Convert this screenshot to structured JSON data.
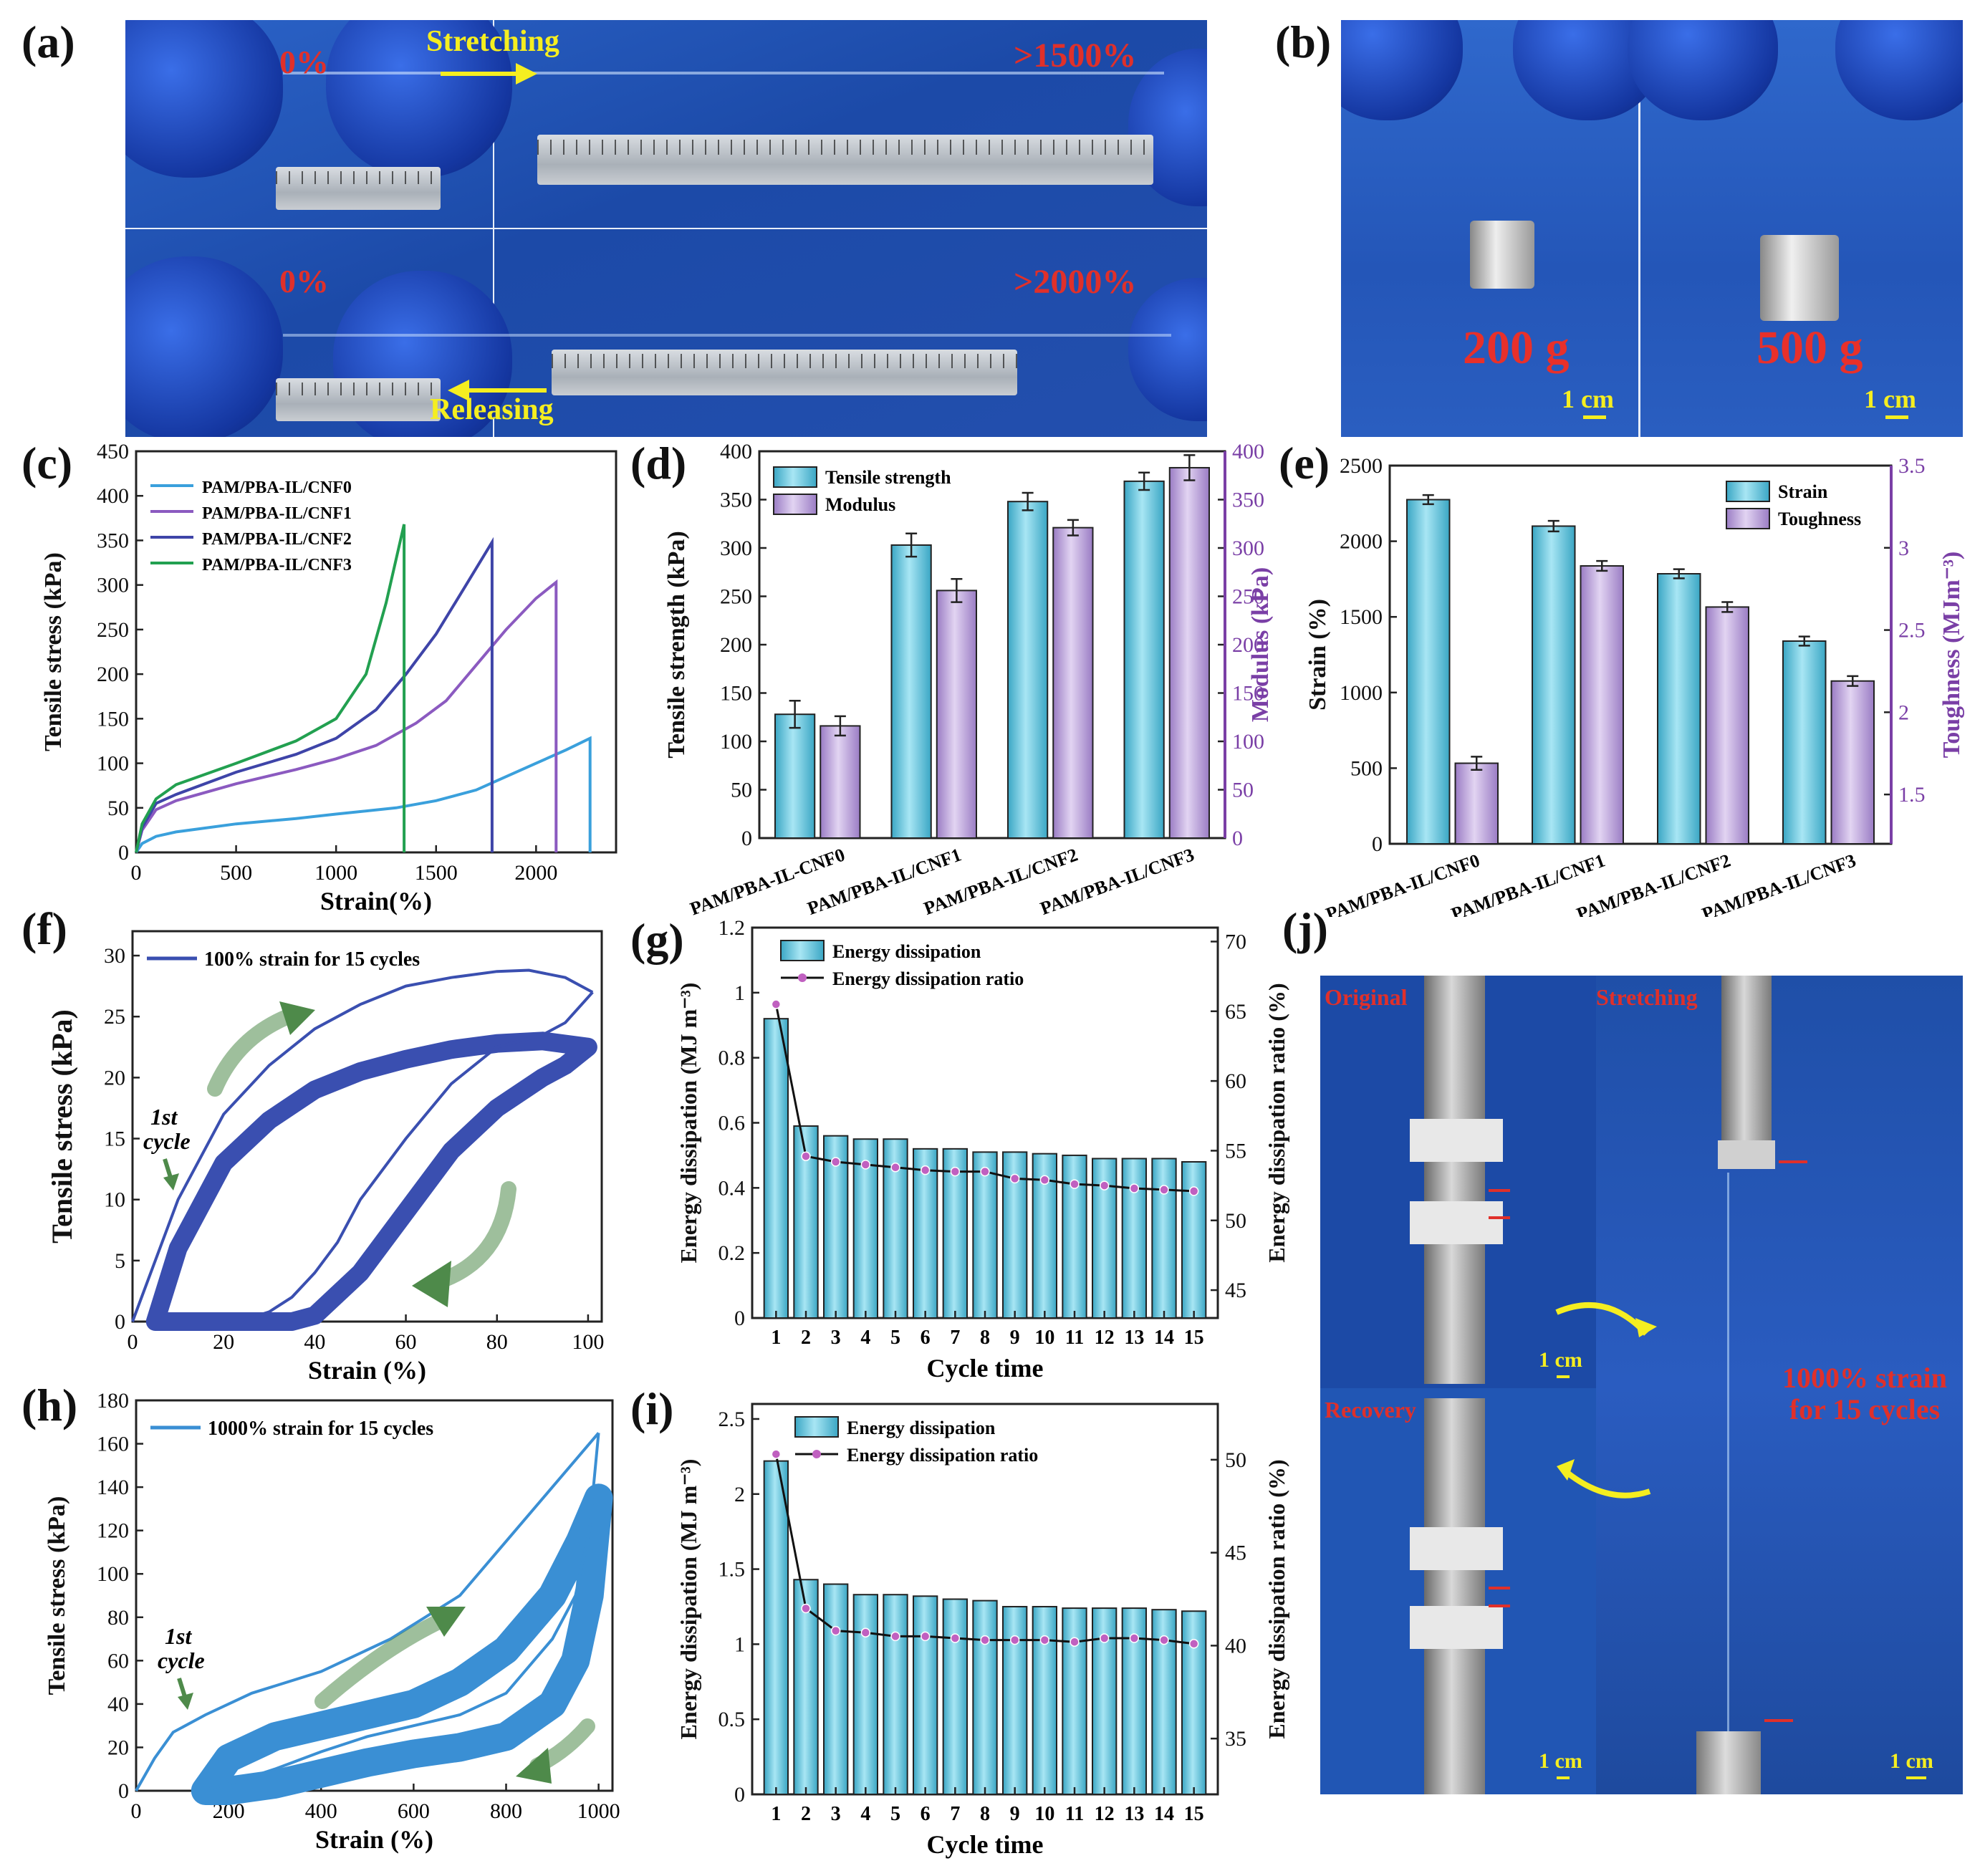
{
  "panel_labels": {
    "a": "(a)",
    "b": "(b)",
    "c": "(c)",
    "d": "(d)",
    "e": "(e)",
    "f": "(f)",
    "g": "(g)",
    "h": "(h)",
    "i": "(i)",
    "j": "(j)"
  },
  "photo_a": {
    "top_left": "0%",
    "top_action": "Stretching",
    "top_right": ">1500%",
    "bottom_left": "0%",
    "bottom_action": "Releasing",
    "bottom_right": ">2000%"
  },
  "photo_b": {
    "left_weight": "200 g",
    "right_weight": "500 g",
    "scale": "1 cm"
  },
  "photo_j": {
    "original": "Original",
    "stretching": "Stretching",
    "recovery": "Recovery",
    "scale": "1 cm",
    "caption_line1": "1000% strain",
    "caption_line2": "for 15 cycles"
  },
  "colors": {
    "cnf0": "#3aa0dc",
    "cnf1": "#8b5ac0",
    "cnf2": "#3e44a8",
    "cnf3": "#22a050",
    "bar_blue": "#5bc3dc",
    "bar_purple": "#b89ed6",
    "cycle_f": "#3a4fb0",
    "cycle_h": "#3a8fd4",
    "arrow_green": "#4e8a4a",
    "ratio_dot": "#c060c0"
  },
  "chart_data": [
    {
      "id": "c",
      "type": "line",
      "xlabel": "Strain(%)",
      "ylabel": "Tensile stress (kPa)",
      "xlim": [
        0,
        2400
      ],
      "ylim": [
        0,
        450
      ],
      "xticks": [
        0,
        500,
        1000,
        1500,
        2000
      ],
      "yticks": [
        0,
        50,
        100,
        150,
        200,
        250,
        300,
        350,
        400,
        450
      ],
      "series": [
        {
          "name": "PAM/PBA-IL/CNF0",
          "x": [
            0,
            30,
            100,
            200,
            500,
            800,
            1000,
            1300,
            1500,
            1700,
            1850,
            2000,
            2150,
            2270,
            2270
          ],
          "y": [
            0,
            10,
            18,
            23,
            32,
            38,
            43,
            50,
            58,
            70,
            85,
            100,
            115,
            128,
            0
          ]
        },
        {
          "name": "PAM/PBA-IL/CNF1",
          "x": [
            0,
            30,
            100,
            200,
            500,
            800,
            1000,
            1200,
            1400,
            1550,
            1700,
            1850,
            2000,
            2100,
            2100
          ],
          "y": [
            0,
            25,
            48,
            58,
            77,
            93,
            105,
            120,
            145,
            170,
            210,
            250,
            285,
            303,
            0
          ]
        },
        {
          "name": "PAM/PBA-IL/CNF2",
          "x": [
            0,
            30,
            100,
            200,
            500,
            800,
            1000,
            1200,
            1350,
            1500,
            1650,
            1780,
            1780
          ],
          "y": [
            0,
            28,
            55,
            65,
            90,
            110,
            128,
            160,
            200,
            245,
            300,
            348,
            0
          ]
        },
        {
          "name": "PAM/PBA-IL/CNF3",
          "x": [
            0,
            30,
            100,
            200,
            500,
            800,
            1000,
            1150,
            1250,
            1340,
            1340
          ],
          "y": [
            0,
            32,
            60,
            76,
            100,
            125,
            150,
            200,
            280,
            368,
            0
          ]
        }
      ]
    },
    {
      "id": "d",
      "type": "bar",
      "categories": [
        "PAM/PBA-IL-CNF0",
        "PAM/PBA-IL/CNF1",
        "PAM/PBA-IL/CNF2",
        "PAM/PBA-IL/CNF3"
      ],
      "ylabel": "Tensile strength (kPa)",
      "y2label": "Modulus (kPa)",
      "ylim": [
        0,
        400
      ],
      "y2lim": [
        0,
        400
      ],
      "yticks": [
        0,
        50,
        100,
        150,
        200,
        250,
        300,
        350,
        400
      ],
      "y2ticks": [
        0,
        50,
        100,
        150,
        200,
        250,
        300,
        350,
        400
      ],
      "series": [
        {
          "name": "Tensile strength",
          "values": [
            128,
            303,
            348,
            369
          ],
          "errors": [
            14,
            12,
            9,
            9
          ],
          "axis": "left"
        },
        {
          "name": "Modulus",
          "values": [
            116,
            256,
            321,
            383
          ],
          "errors": [
            10,
            12,
            8,
            13
          ],
          "axis": "right"
        }
      ]
    },
    {
      "id": "e",
      "type": "bar",
      "categories": [
        "PAM/PBA-IL/CNF0",
        "PAM/PBA-IL/CNF1",
        "PAM/PBA-IL/CNF2",
        "PAM/PBA-IL/CNF3"
      ],
      "ylabel": "Strain (%)",
      "y2label": "Toughness (MJm⁻³)",
      "ylim": [
        0,
        2500
      ],
      "y2lim": [
        1.2,
        3.5
      ],
      "yticks": [
        0,
        500,
        1000,
        1500,
        2000,
        2500
      ],
      "y2ticks": [
        1.5,
        2.0,
        2.5,
        3.0,
        3.5
      ],
      "series": [
        {
          "name": "Strain",
          "values": [
            2275,
            2100,
            1785,
            1340
          ],
          "errors": [
            30,
            35,
            30,
            30
          ],
          "axis": "left"
        },
        {
          "name": "Toughness",
          "values": [
            1.69,
            2.89,
            2.64,
            2.19
          ],
          "errors": [
            0.04,
            0.03,
            0.03,
            0.03
          ],
          "axis": "right"
        }
      ]
    },
    {
      "id": "f",
      "type": "line",
      "legend": "100% strain for 15 cycles",
      "annotation": "1st cycle",
      "xlabel": "Strain (%)",
      "ylabel": "Tensile stress (kPa)",
      "xlim": [
        0,
        103
      ],
      "ylim": [
        0,
        32
      ],
      "xticks": [
        0,
        20,
        40,
        60,
        80,
        100
      ],
      "yticks": [
        0,
        5,
        10,
        15,
        20,
        25,
        30
      ],
      "first_cycle": {
        "load_x": [
          0,
          5,
          10,
          20,
          30,
          40,
          50,
          60,
          70,
          80,
          87,
          95,
          101
        ],
        "load_y": [
          0,
          5,
          10,
          17,
          21,
          24,
          26,
          27.5,
          28.2,
          28.7,
          28.8,
          28.2,
          27
        ],
        "unload_x": [
          101,
          95,
          90,
          80,
          70,
          60,
          50,
          45,
          40,
          35,
          30,
          25,
          20
        ],
        "unload_y": [
          27,
          24.5,
          23.5,
          22.5,
          19.5,
          15,
          10,
          6.5,
          4,
          2,
          0.8,
          0.2,
          0
        ]
      },
      "later_load_x": [
        5,
        10,
        20,
        30,
        40,
        50,
        60,
        70,
        80,
        90,
        100
      ],
      "later_load_y": [
        0,
        6,
        13,
        16.5,
        19,
        20.5,
        21.5,
        22.3,
        22.8,
        23,
        22.5
      ],
      "later_unload_x": [
        100,
        95,
        90,
        80,
        70,
        60,
        50,
        40,
        35,
        30
      ],
      "later_unload_y": [
        22.5,
        21,
        20,
        17.5,
        14,
        9,
        4,
        0.5,
        0,
        0
      ]
    },
    {
      "id": "g",
      "type": "bar",
      "xlabel": "Cycle time",
      "ylabel": "Energy dissipation (MJ m⁻³)",
      "y2label": "Energy dissipation ratio (%)",
      "categories": [
        "1",
        "2",
        "3",
        "4",
        "5",
        "6",
        "7",
        "8",
        "9",
        "10",
        "11",
        "12",
        "13",
        "14",
        "15"
      ],
      "ylim": [
        0,
        1.2
      ],
      "y2lim": [
        43,
        71
      ],
      "yticks": [
        0.0,
        0.2,
        0.4,
        0.6,
        0.8,
        1.0,
        1.2
      ],
      "y2ticks": [
        45,
        50,
        55,
        60,
        65,
        70
      ],
      "series": [
        {
          "name": "Energy dissipation",
          "values": [
            0.92,
            0.59,
            0.56,
            0.55,
            0.55,
            0.52,
            0.52,
            0.51,
            0.51,
            0.505,
            0.5,
            0.49,
            0.49,
            0.49,
            0.48
          ],
          "axis": "left"
        },
        {
          "name": "Energy dissipation ratio",
          "values": [
            65.5,
            54.6,
            54.2,
            54.0,
            53.8,
            53.6,
            53.5,
            53.5,
            53.0,
            52.9,
            52.6,
            52.5,
            52.3,
            52.2,
            52.1
          ],
          "axis": "right"
        }
      ]
    },
    {
      "id": "h",
      "type": "line",
      "legend": "1000% strain for 15 cycles",
      "annotation": "1st cycle",
      "xlabel": "Strain (%)",
      "ylabel": "Tensile stress (kPa)",
      "xlim": [
        0,
        1030
      ],
      "ylim": [
        0,
        180
      ],
      "xticks": [
        0,
        200,
        400,
        600,
        800,
        1000
      ],
      "yticks": [
        0,
        20,
        40,
        60,
        80,
        100,
        120,
        140,
        160,
        180
      ],
      "first_cycle": {
        "load_x": [
          0,
          40,
          80,
          150,
          250,
          400,
          550,
          700,
          800,
          900,
          960,
          1000
        ],
        "load_y": [
          0,
          15,
          27,
          35,
          45,
          55,
          70,
          90,
          115,
          140,
          155,
          165
        ],
        "unload_x": [
          1000,
          980,
          950,
          900,
          800,
          700,
          600,
          500,
          400,
          300,
          200,
          140
        ],
        "unload_y": [
          165,
          120,
          90,
          70,
          45,
          35,
          30,
          25,
          18,
          10,
          3,
          0
        ]
      },
      "later_load_x": [
        150,
        200,
        300,
        400,
        500,
        600,
        700,
        800,
        900,
        960,
        1000
      ],
      "later_load_y": [
        0,
        15,
        25,
        30,
        35,
        40,
        50,
        65,
        90,
        115,
        135
      ],
      "later_unload_x": [
        1000,
        980,
        950,
        900,
        800,
        700,
        600,
        500,
        400,
        300,
        200
      ],
      "later_unload_y": [
        135,
        90,
        60,
        40,
        25,
        20,
        17,
        13,
        8,
        3,
        0
      ]
    },
    {
      "id": "i",
      "type": "bar",
      "xlabel": "Cycle time",
      "ylabel": "Energy dissipation (MJ m⁻³)",
      "y2label": "Energy dissipation ratio (%)",
      "categories": [
        "1",
        "2",
        "3",
        "4",
        "5",
        "6",
        "7",
        "8",
        "9",
        "10",
        "11",
        "12",
        "13",
        "14",
        "15"
      ],
      "ylim": [
        0,
        2.6
      ],
      "y2lim": [
        32,
        53
      ],
      "yticks": [
        0.0,
        0.5,
        1.0,
        1.5,
        2.0,
        2.5
      ],
      "y2ticks": [
        35,
        40,
        45,
        50
      ],
      "series": [
        {
          "name": "Energy dissipation",
          "values": [
            2.22,
            1.43,
            1.4,
            1.33,
            1.33,
            1.32,
            1.3,
            1.29,
            1.25,
            1.25,
            1.24,
            1.24,
            1.24,
            1.23,
            1.22
          ],
          "axis": "left"
        },
        {
          "name": "Energy dissipation ratio",
          "values": [
            50.3,
            42.0,
            40.8,
            40.7,
            40.5,
            40.5,
            40.4,
            40.3,
            40.3,
            40.3,
            40.2,
            40.4,
            40.4,
            40.3,
            40.1
          ],
          "axis": "right"
        }
      ]
    }
  ]
}
